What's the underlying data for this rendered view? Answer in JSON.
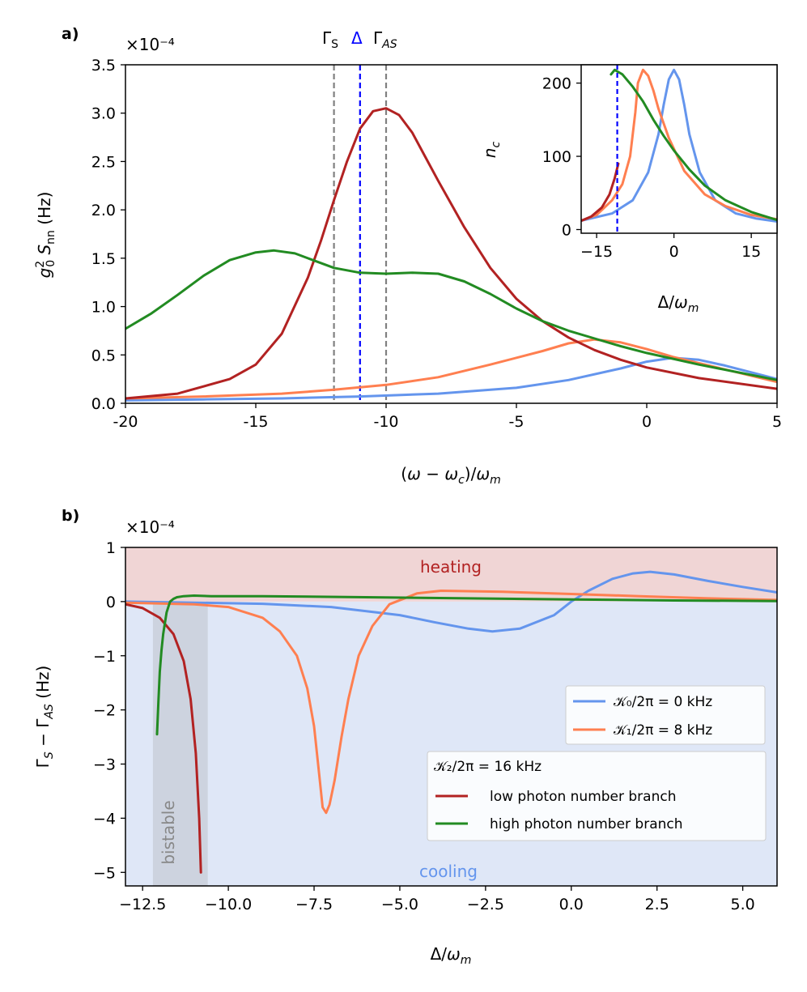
{
  "figure": {
    "colors": {
      "k0": "#6495ed",
      "k1": "#ff7f50",
      "low": "#b22222",
      "high": "#228b22",
      "delta_line": "#0000ff",
      "gamma_lines": "#808080",
      "heating_region": "#f0d5d5",
      "cooling_region": "#dfe7f7",
      "bistable_region": "#cdd3df"
    }
  },
  "chart_data": [
    {
      "panel": "a)",
      "type": "line",
      "xlabel": "(ω − ω_c)/ω_m",
      "ylabel": "g_0² S_nn (Hz)",
      "y_multiplier": "×10⁻⁴",
      "xlim": [
        -20,
        5
      ],
      "ylim": [
        0,
        3.5
      ],
      "x_ticks": [
        -20,
        -15,
        -10,
        -5,
        0,
        5
      ],
      "x_tick_labels": [
        "-20",
        "-15",
        "-10",
        "-5",
        "0",
        "5"
      ],
      "y_ticks": [
        0.0,
        0.5,
        1.0,
        1.5,
        2.0,
        2.5,
        3.0,
        3.5
      ],
      "y_tick_labels": [
        "0.0",
        "0.5",
        "1.0",
        "1.5",
        "2.0",
        "2.5",
        "3.0",
        "3.5"
      ],
      "top_annotations": [
        "Γ_S",
        "Δ",
        "Γ_AS"
      ],
      "vlines": [
        {
          "x": -12,
          "color": "gray",
          "style": "dashed"
        },
        {
          "x": -11,
          "color": "blue",
          "style": "dashed"
        },
        {
          "x": -10,
          "color": "gray",
          "style": "dashed"
        }
      ],
      "series": [
        {
          "key": "k0",
          "x": [
            -20,
            -17,
            -14,
            -11,
            -8,
            -5,
            -3,
            -1,
            0,
            1,
            2,
            3,
            5
          ],
          "y": [
            0.03,
            0.04,
            0.05,
            0.07,
            0.1,
            0.16,
            0.24,
            0.36,
            0.43,
            0.47,
            0.45,
            0.39,
            0.25
          ]
        },
        {
          "key": "k1",
          "x": [
            -20,
            -17,
            -14,
            -12,
            -10,
            -8,
            -6,
            -4,
            -3,
            -2,
            -1,
            0,
            1,
            3,
            5
          ],
          "y": [
            0.05,
            0.07,
            0.1,
            0.14,
            0.19,
            0.27,
            0.4,
            0.54,
            0.62,
            0.66,
            0.63,
            0.56,
            0.48,
            0.35,
            0.22
          ]
        },
        {
          "key": "low",
          "x": [
            -20,
            -18,
            -16,
            -15,
            -14,
            -13,
            -12.5,
            -12,
            -11.5,
            -11,
            -10.5,
            -10,
            -9.5,
            -9,
            -8.5,
            -8,
            -7,
            -6,
            -5,
            -4,
            -3,
            -2,
            -1,
            0,
            2,
            5
          ],
          "y": [
            0.05,
            0.1,
            0.25,
            0.4,
            0.72,
            1.3,
            1.68,
            2.1,
            2.5,
            2.84,
            3.02,
            3.05,
            2.98,
            2.8,
            2.55,
            2.3,
            1.82,
            1.4,
            1.08,
            0.85,
            0.68,
            0.55,
            0.45,
            0.37,
            0.26,
            0.15
          ]
        },
        {
          "key": "high",
          "x": [
            -20,
            -19,
            -18,
            -17,
            -16,
            -15,
            -14.3,
            -13.5,
            -13,
            -12,
            -11,
            -10,
            -9,
            -8,
            -7,
            -6,
            -5,
            -4,
            -3,
            -2,
            -1,
            0,
            2,
            5
          ],
          "y": [
            0.77,
            0.93,
            1.12,
            1.32,
            1.48,
            1.56,
            1.58,
            1.55,
            1.5,
            1.4,
            1.35,
            1.34,
            1.35,
            1.34,
            1.26,
            1.13,
            0.98,
            0.85,
            0.75,
            0.67,
            0.59,
            0.52,
            0.4,
            0.24
          ]
        }
      ]
    },
    {
      "panel": "inset",
      "type": "line",
      "xlabel": "Δ/ω_m",
      "ylabel": "n_c",
      "xlim": [
        -18,
        20
      ],
      "ylim": [
        -5,
        225
      ],
      "x_ticks": [
        -15,
        0,
        15
      ],
      "x_tick_labels": [
        "−15",
        "0",
        "15"
      ],
      "y_ticks": [
        0,
        100,
        200
      ],
      "y_tick_labels": [
        "0",
        "100",
        "200"
      ],
      "vline_x": -11,
      "series": [
        {
          "key": "k0",
          "x": [
            -18,
            -12,
            -8,
            -5,
            -3,
            -2,
            -1,
            0,
            1,
            2,
            3,
            5,
            8,
            12,
            16,
            20
          ],
          "y": [
            12,
            22,
            40,
            78,
            130,
            170,
            205,
            218,
            205,
            170,
            130,
            78,
            40,
            22,
            15,
            11
          ]
        },
        {
          "key": "k1",
          "x": [
            -18,
            -15,
            -12,
            -10,
            -8.5,
            -7.5,
            -7,
            -6,
            -5,
            -4,
            -3,
            -1,
            2,
            6,
            10,
            15,
            20
          ],
          "y": [
            12,
            20,
            40,
            62,
            100,
            160,
            200,
            218,
            210,
            190,
            165,
            125,
            80,
            48,
            32,
            20,
            14
          ]
        },
        {
          "key": "low",
          "x": [
            -18,
            -16,
            -14,
            -12.5,
            -11.5,
            -10.8
          ],
          "y": [
            12,
            18,
            30,
            48,
            70,
            90
          ]
        },
        {
          "key": "high",
          "x": [
            -12.2,
            -11.5,
            -10,
            -8,
            -6,
            -4,
            -2,
            0,
            3,
            6,
            10,
            15,
            20
          ],
          "y": [
            212,
            218,
            212,
            195,
            175,
            150,
            128,
            108,
            82,
            60,
            40,
            24,
            13
          ]
        }
      ]
    },
    {
      "panel": "b)",
      "type": "line",
      "xlabel": "Δ/ω_m",
      "ylabel": "Γ_S − Γ_AS (Hz)",
      "y_multiplier": "×10⁻⁴",
      "xlim": [
        -13,
        6
      ],
      "ylim": [
        -5.25,
        1
      ],
      "x_ticks": [
        -12.5,
        -10,
        -7.5,
        -5,
        -2.5,
        0,
        2.5,
        5
      ],
      "x_tick_labels": [
        "−12.5",
        "−10.0",
        "−7.5",
        "−5.0",
        "−2.5",
        "0.0",
        "2.5",
        "5.0"
      ],
      "y_ticks": [
        1,
        0,
        -1,
        -2,
        -3,
        -4,
        -5
      ],
      "y_tick_labels": [
        "1",
        "0",
        "−1",
        "−2",
        "−3",
        "−4",
        "−5"
      ],
      "region_labels": {
        "heating": "heating",
        "cooling": "cooling",
        "bistable": "bistable"
      },
      "bistable_range": [
        -12.2,
        -10.6
      ],
      "legend": {
        "k0": "𝒦₀/2π = 0 kHz",
        "k1": "𝒦₁/2π = 8 kHz",
        "group_title": "𝒦₂/2π = 16 kHz",
        "low": "low photon number branch",
        "high": "high photon number branch"
      },
      "series": [
        {
          "key": "k0",
          "x": [
            -13,
            -11,
            -9,
            -7,
            -5,
            -4,
            -3,
            -2.3,
            -1.5,
            -0.5,
            0,
            0.5,
            1.2,
            1.8,
            2.3,
            3,
            4,
            5,
            6
          ],
          "y": [
            0,
            -0.02,
            -0.04,
            -0.1,
            -0.25,
            -0.38,
            -0.5,
            -0.55,
            -0.5,
            -0.25,
            0,
            0.2,
            0.42,
            0.52,
            0.55,
            0.5,
            0.38,
            0.27,
            0.17
          ]
        },
        {
          "key": "k1",
          "x": [
            -13,
            -11,
            -10,
            -9,
            -8.5,
            -8,
            -7.7,
            -7.5,
            -7.35,
            -7.25,
            -7.15,
            -7.05,
            -6.9,
            -6.7,
            -6.5,
            -6.2,
            -5.8,
            -5.3,
            -4.5,
            -3.8,
            -2,
            0,
            2,
            4,
            6
          ],
          "y": [
            -0.02,
            -0.05,
            -0.1,
            -0.3,
            -0.55,
            -1.0,
            -1.6,
            -2.3,
            -3.2,
            -3.8,
            -3.9,
            -3.75,
            -3.3,
            -2.5,
            -1.8,
            -1.0,
            -0.45,
            -0.05,
            0.15,
            0.2,
            0.18,
            0.14,
            0.1,
            0.06,
            0.03
          ]
        },
        {
          "key": "low",
          "x": [
            -13,
            -12.5,
            -12,
            -11.6,
            -11.3,
            -11.1,
            -10.95,
            -10.85,
            -10.8
          ],
          "y": [
            -0.05,
            -0.12,
            -0.3,
            -0.6,
            -1.1,
            -1.8,
            -2.8,
            -4.0,
            -5.0
          ]
        },
        {
          "key": "high",
          "x": [
            -12.08,
            -12.04,
            -12.0,
            -11.95,
            -11.9,
            -11.85,
            -11.8,
            -11.7,
            -11.6,
            -11.5,
            -11.3,
            -11.0,
            -10.5,
            -9,
            -6,
            -3,
            0,
            3,
            6
          ],
          "y": [
            -2.45,
            -1.85,
            -1.3,
            -0.9,
            -0.6,
            -0.4,
            -0.2,
            0.0,
            0.05,
            0.08,
            0.1,
            0.11,
            0.1,
            0.1,
            0.08,
            0.06,
            0.04,
            0.02,
            0.01
          ]
        }
      ]
    }
  ]
}
